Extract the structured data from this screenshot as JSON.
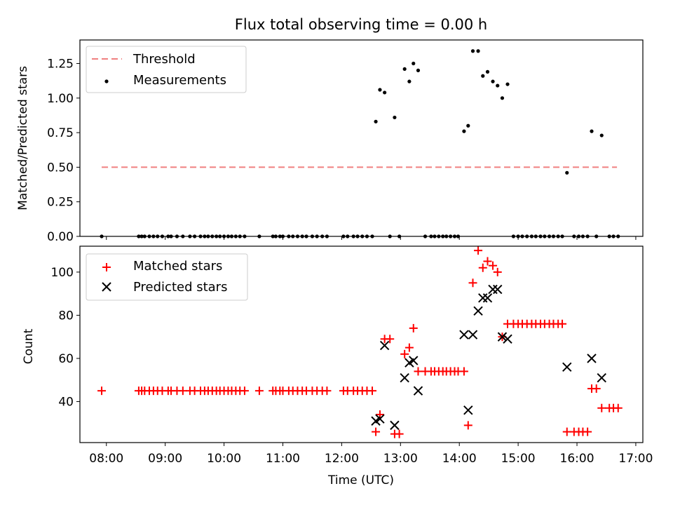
{
  "chart_data": {
    "type": "scatter",
    "title": "Flux total observing time = 0.00 h",
    "xlabel": "Time (UTC)",
    "x_unit": "decimal hours UTC",
    "xlim": [
      7.55,
      17.12
    ],
    "xtick_values": [
      8,
      9,
      10,
      11,
      12,
      13,
      14,
      15,
      16,
      17
    ],
    "xtick_labels": [
      "08:00",
      "09:00",
      "10:00",
      "11:00",
      "12:00",
      "13:00",
      "14:00",
      "15:00",
      "16:00",
      "17:00"
    ],
    "top_panel": {
      "ylabel": "Matched/Predicted stars",
      "ylim": [
        0.0,
        1.42
      ],
      "ytick_values": [
        0.0,
        0.25,
        0.5,
        0.75,
        1.0,
        1.25
      ],
      "ytick_labels": [
        "0.00",
        "0.25",
        "0.50",
        "0.75",
        "1.00",
        "1.25"
      ],
      "legend_position": "upper-left",
      "threshold": {
        "name": "Threshold",
        "value": 0.5,
        "x_range": [
          7.92,
          16.68
        ],
        "color": "#f08080"
      },
      "measurements": {
        "name": "Measurements",
        "color": "#000000",
        "points": [
          [
            7.92,
            0.0
          ],
          [
            8.55,
            0.0
          ],
          [
            8.6,
            0.0
          ],
          [
            8.65,
            0.0
          ],
          [
            8.73,
            0.0
          ],
          [
            8.8,
            0.0
          ],
          [
            8.87,
            0.0
          ],
          [
            8.95,
            0.0
          ],
          [
            9.05,
            0.0
          ],
          [
            9.1,
            0.0
          ],
          [
            9.2,
            0.0
          ],
          [
            9.3,
            0.0
          ],
          [
            9.42,
            0.0
          ],
          [
            9.5,
            0.0
          ],
          [
            9.6,
            0.0
          ],
          [
            9.67,
            0.0
          ],
          [
            9.73,
            0.0
          ],
          [
            9.8,
            0.0
          ],
          [
            9.87,
            0.0
          ],
          [
            9.93,
            0.0
          ],
          [
            10.0,
            0.0
          ],
          [
            10.07,
            0.0
          ],
          [
            10.13,
            0.0
          ],
          [
            10.2,
            0.0
          ],
          [
            10.27,
            0.0
          ],
          [
            10.35,
            0.0
          ],
          [
            10.6,
            0.0
          ],
          [
            10.83,
            0.0
          ],
          [
            10.88,
            0.0
          ],
          [
            10.95,
            0.0
          ],
          [
            11.0,
            0.0
          ],
          [
            11.1,
            0.0
          ],
          [
            11.17,
            0.0
          ],
          [
            11.25,
            0.0
          ],
          [
            11.33,
            0.0
          ],
          [
            11.4,
            0.0
          ],
          [
            11.5,
            0.0
          ],
          [
            11.58,
            0.0
          ],
          [
            11.67,
            0.0
          ],
          [
            11.75,
            0.0
          ],
          [
            12.03,
            0.0
          ],
          [
            12.1,
            0.0
          ],
          [
            12.2,
            0.0
          ],
          [
            12.27,
            0.0
          ],
          [
            12.35,
            0.0
          ],
          [
            12.43,
            0.0
          ],
          [
            12.52,
            0.0
          ],
          [
            12.58,
            0.83
          ],
          [
            12.65,
            1.06
          ],
          [
            12.73,
            1.04
          ],
          [
            12.82,
            0.0
          ],
          [
            12.9,
            0.86
          ],
          [
            12.98,
            0.0
          ],
          [
            13.07,
            1.21
          ],
          [
            13.15,
            1.12
          ],
          [
            13.22,
            1.25
          ],
          [
            13.3,
            1.2
          ],
          [
            13.42,
            0.0
          ],
          [
            13.52,
            0.0
          ],
          [
            13.58,
            0.0
          ],
          [
            13.65,
            0.0
          ],
          [
            13.72,
            0.0
          ],
          [
            13.78,
            0.0
          ],
          [
            13.85,
            0.0
          ],
          [
            13.92,
            0.0
          ],
          [
            13.98,
            0.0
          ],
          [
            14.08,
            0.76
          ],
          [
            14.15,
            0.8
          ],
          [
            14.23,
            1.34
          ],
          [
            14.32,
            1.34
          ],
          [
            14.4,
            1.16
          ],
          [
            14.48,
            1.19
          ],
          [
            14.57,
            1.12
          ],
          [
            14.65,
            1.09
          ],
          [
            14.73,
            1.0
          ],
          [
            14.82,
            1.1
          ],
          [
            14.92,
            0.0
          ],
          [
            15.0,
            0.0
          ],
          [
            15.07,
            0.0
          ],
          [
            15.15,
            0.0
          ],
          [
            15.23,
            0.0
          ],
          [
            15.3,
            0.0
          ],
          [
            15.38,
            0.0
          ],
          [
            15.45,
            0.0
          ],
          [
            15.53,
            0.0
          ],
          [
            15.6,
            0.0
          ],
          [
            15.68,
            0.0
          ],
          [
            15.75,
            0.0
          ],
          [
            15.83,
            0.46
          ],
          [
            15.95,
            0.0
          ],
          [
            16.03,
            0.0
          ],
          [
            16.1,
            0.0
          ],
          [
            16.18,
            0.0
          ],
          [
            16.25,
            0.76
          ],
          [
            16.33,
            0.0
          ],
          [
            16.42,
            0.73
          ],
          [
            16.55,
            0.0
          ],
          [
            16.62,
            0.0
          ],
          [
            16.7,
            0.0
          ]
        ]
      }
    },
    "bottom_panel": {
      "ylabel": "Count",
      "ylim": [
        21,
        112
      ],
      "ytick_values": [
        40,
        60,
        80,
        100
      ],
      "ytick_labels": [
        "40",
        "60",
        "80",
        "100"
      ],
      "legend_position": "upper-left",
      "series": [
        {
          "name": "Matched stars",
          "marker": "+",
          "color": "#ff0000",
          "points": [
            [
              7.92,
              45
            ],
            [
              8.55,
              45
            ],
            [
              8.6,
              45
            ],
            [
              8.65,
              45
            ],
            [
              8.73,
              45
            ],
            [
              8.8,
              45
            ],
            [
              8.87,
              45
            ],
            [
              8.95,
              45
            ],
            [
              9.05,
              45
            ],
            [
              9.1,
              45
            ],
            [
              9.2,
              45
            ],
            [
              9.3,
              45
            ],
            [
              9.42,
              45
            ],
            [
              9.5,
              45
            ],
            [
              9.6,
              45
            ],
            [
              9.67,
              45
            ],
            [
              9.73,
              45
            ],
            [
              9.8,
              45
            ],
            [
              9.87,
              45
            ],
            [
              9.93,
              45
            ],
            [
              10.0,
              45
            ],
            [
              10.07,
              45
            ],
            [
              10.13,
              45
            ],
            [
              10.2,
              45
            ],
            [
              10.27,
              45
            ],
            [
              10.35,
              45
            ],
            [
              10.6,
              45
            ],
            [
              10.83,
              45
            ],
            [
              10.88,
              45
            ],
            [
              10.95,
              45
            ],
            [
              11.0,
              45
            ],
            [
              11.1,
              45
            ],
            [
              11.17,
              45
            ],
            [
              11.25,
              45
            ],
            [
              11.33,
              45
            ],
            [
              11.4,
              45
            ],
            [
              11.5,
              45
            ],
            [
              11.58,
              45
            ],
            [
              11.67,
              45
            ],
            [
              11.75,
              45
            ],
            [
              12.03,
              45
            ],
            [
              12.1,
              45
            ],
            [
              12.2,
              45
            ],
            [
              12.27,
              45
            ],
            [
              12.35,
              45
            ],
            [
              12.43,
              45
            ],
            [
              12.52,
              45
            ],
            [
              12.58,
              26
            ],
            [
              12.65,
              34
            ],
            [
              12.73,
              69
            ],
            [
              12.82,
              69
            ],
            [
              12.9,
              25
            ],
            [
              12.98,
              25
            ],
            [
              13.07,
              62
            ],
            [
              13.15,
              65
            ],
            [
              13.22,
              74
            ],
            [
              13.3,
              54
            ],
            [
              13.42,
              54
            ],
            [
              13.52,
              54
            ],
            [
              13.58,
              54
            ],
            [
              13.65,
              54
            ],
            [
              13.72,
              54
            ],
            [
              13.78,
              54
            ],
            [
              13.85,
              54
            ],
            [
              13.92,
              54
            ],
            [
              13.98,
              54
            ],
            [
              14.08,
              54
            ],
            [
              14.15,
              29
            ],
            [
              14.23,
              95
            ],
            [
              14.32,
              110
            ],
            [
              14.4,
              102
            ],
            [
              14.48,
              105
            ],
            [
              14.57,
              103
            ],
            [
              14.65,
              100
            ],
            [
              14.73,
              70
            ],
            [
              14.82,
              76
            ],
            [
              14.92,
              76
            ],
            [
              15.0,
              76
            ],
            [
              15.07,
              76
            ],
            [
              15.15,
              76
            ],
            [
              15.23,
              76
            ],
            [
              15.3,
              76
            ],
            [
              15.38,
              76
            ],
            [
              15.45,
              76
            ],
            [
              15.53,
              76
            ],
            [
              15.6,
              76
            ],
            [
              15.68,
              76
            ],
            [
              15.75,
              76
            ],
            [
              15.83,
              26
            ],
            [
              15.95,
              26
            ],
            [
              16.03,
              26
            ],
            [
              16.1,
              26
            ],
            [
              16.18,
              26
            ],
            [
              16.25,
              46
            ],
            [
              16.33,
              46
            ],
            [
              16.42,
              37
            ],
            [
              16.55,
              37
            ],
            [
              16.62,
              37
            ],
            [
              16.7,
              37
            ]
          ]
        },
        {
          "name": "Predicted stars",
          "marker": "x",
          "color": "#000000",
          "points": [
            [
              12.58,
              31
            ],
            [
              12.65,
              32
            ],
            [
              12.73,
              66
            ],
            [
              12.9,
              29
            ],
            [
              13.07,
              51
            ],
            [
              13.15,
              58
            ],
            [
              13.22,
              59
            ],
            [
              13.3,
              45
            ],
            [
              14.08,
              71
            ],
            [
              14.15,
              36
            ],
            [
              14.23,
              71
            ],
            [
              14.32,
              82
            ],
            [
              14.4,
              88
            ],
            [
              14.48,
              88
            ],
            [
              14.57,
              92
            ],
            [
              14.65,
              92
            ],
            [
              14.73,
              70
            ],
            [
              14.82,
              69
            ],
            [
              15.83,
              56
            ],
            [
              16.25,
              60
            ],
            [
              16.42,
              51
            ]
          ]
        }
      ]
    }
  }
}
